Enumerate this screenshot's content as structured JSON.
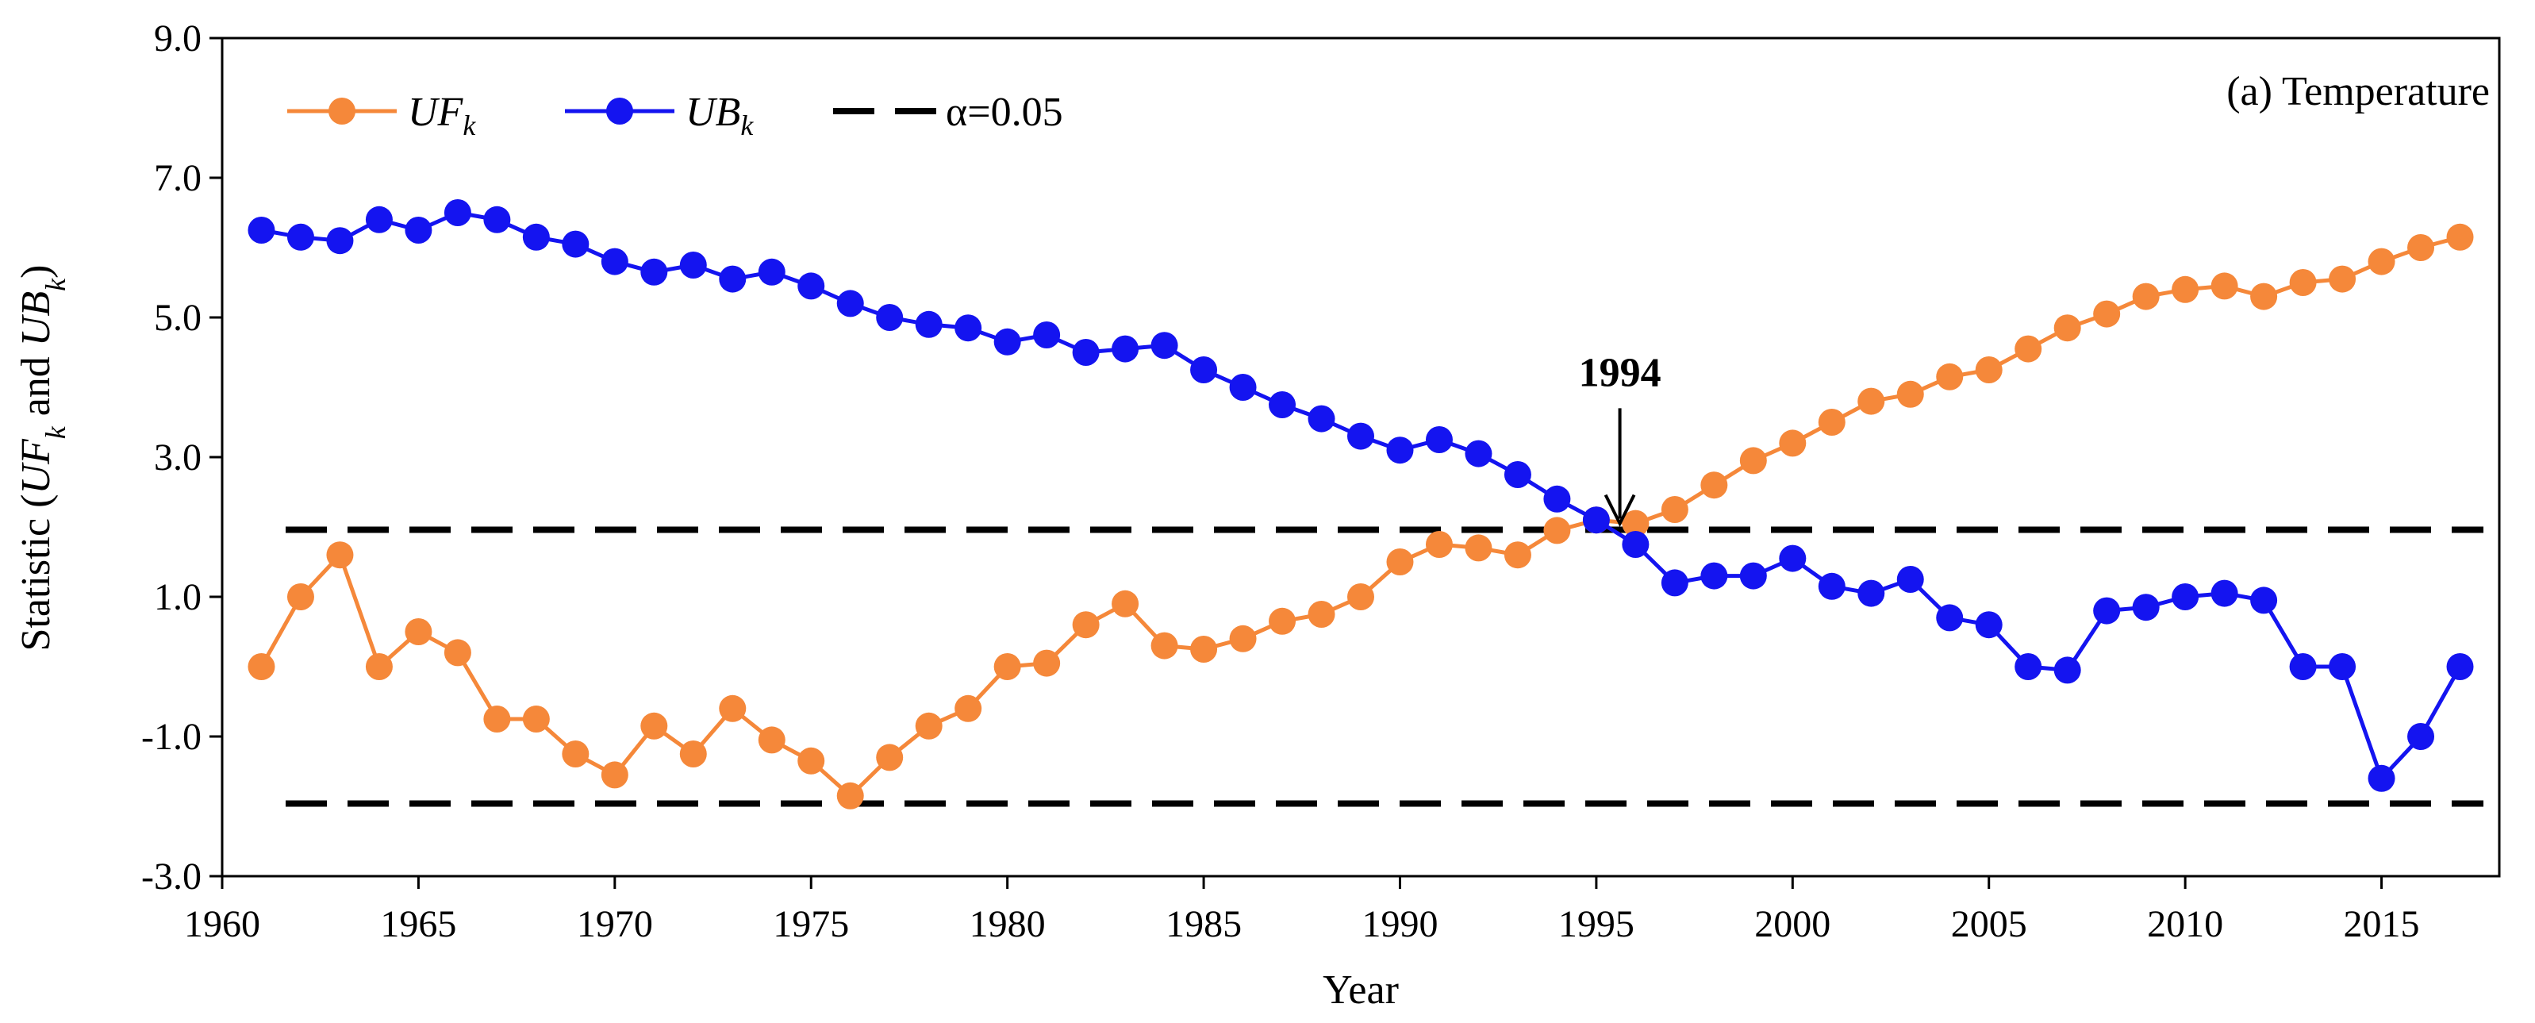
{
  "chart_data": {
    "type": "line",
    "title": "(a) Temperature",
    "xlabel": "Year",
    "ylabel": {
      "prefix": "Statistic (",
      "s1_main": "UF",
      "s1_sub": "k",
      "mid": " and ",
      "s2_main": "UB",
      "s2_sub": "k",
      "suffix": ")"
    },
    "xlim": [
      1960,
      2018
    ],
    "ylim": [
      -3.0,
      9.0
    ],
    "x_ticks": [
      1960,
      1965,
      1970,
      1975,
      1980,
      1985,
      1990,
      1995,
      2000,
      2005,
      2010,
      2015
    ],
    "y_ticks": [
      -3.0,
      -1.0,
      1.0,
      3.0,
      5.0,
      7.0,
      9.0
    ],
    "x_tick_labels": [
      "1960",
      "1965",
      "1970",
      "1975",
      "1980",
      "1985",
      "1990",
      "1995",
      "2000",
      "2005",
      "2010",
      "2015"
    ],
    "y_tick_labels": [
      "-3.0",
      "-1.0",
      "1.0",
      "3.0",
      "5.0",
      "7.0",
      "9.0"
    ],
    "x": [
      1961,
      1962,
      1963,
      1964,
      1965,
      1966,
      1967,
      1968,
      1969,
      1970,
      1971,
      1972,
      1973,
      1974,
      1975,
      1976,
      1977,
      1978,
      1979,
      1980,
      1981,
      1982,
      1983,
      1984,
      1985,
      1986,
      1987,
      1988,
      1989,
      1990,
      1991,
      1992,
      1993,
      1994,
      1995,
      1996,
      1997,
      1998,
      1999,
      2000,
      2001,
      2002,
      2003,
      2004,
      2005,
      2006,
      2007,
      2008,
      2009,
      2010,
      2011,
      2012,
      2013,
      2014,
      2015,
      2016,
      2017
    ],
    "series": [
      {
        "name": "UFk",
        "label_main": "UF",
        "label_sub": "k",
        "color": "#f5883a",
        "values": [
          0.0,
          1.0,
          1.6,
          0.0,
          0.5,
          0.2,
          -0.75,
          -0.75,
          -1.25,
          -1.55,
          -0.85,
          -1.25,
          -0.6,
          -1.05,
          -1.35,
          -1.85,
          -1.3,
          -0.85,
          -0.6,
          0.0,
          0.05,
          0.6,
          0.9,
          0.3,
          0.25,
          0.4,
          0.65,
          0.75,
          1.0,
          1.5,
          1.75,
          1.7,
          1.6,
          1.95,
          2.1,
          2.05,
          2.25,
          2.6,
          2.95,
          3.2,
          3.5,
          3.8,
          3.9,
          4.15,
          4.25,
          4.55,
          4.85,
          5.05,
          5.3,
          5.4,
          5.45,
          5.3,
          5.5,
          5.55,
          5.8,
          6.0,
          6.15
        ]
      },
      {
        "name": "UBk",
        "label_main": "UB",
        "label_sub": "k",
        "color": "#1414f0",
        "values": [
          6.25,
          6.15,
          6.1,
          6.4,
          6.25,
          6.5,
          6.4,
          6.15,
          6.05,
          5.8,
          5.65,
          5.75,
          5.55,
          5.65,
          5.45,
          5.2,
          5.0,
          4.9,
          4.85,
          4.65,
          4.75,
          4.5,
          4.55,
          4.6,
          4.25,
          4.0,
          3.75,
          3.55,
          3.3,
          3.1,
          3.25,
          3.05,
          2.75,
          2.4,
          2.1,
          1.75,
          1.2,
          1.3,
          1.3,
          1.55,
          1.15,
          1.05,
          1.25,
          0.7,
          0.6,
          0.0,
          -0.05,
          0.8,
          0.85,
          1.0,
          1.05,
          0.95,
          0.0,
          0.0,
          -1.6,
          -1.0,
          0.0
        ]
      }
    ],
    "thresholds": {
      "label": "α=0.05",
      "upper": 1.96,
      "lower": -1.96,
      "color": "#000000"
    },
    "annotation": {
      "text": "1994",
      "x": 1995.6,
      "y": 2.05,
      "arrow_from_y": 3.7
    },
    "legend_position": "top-left"
  }
}
